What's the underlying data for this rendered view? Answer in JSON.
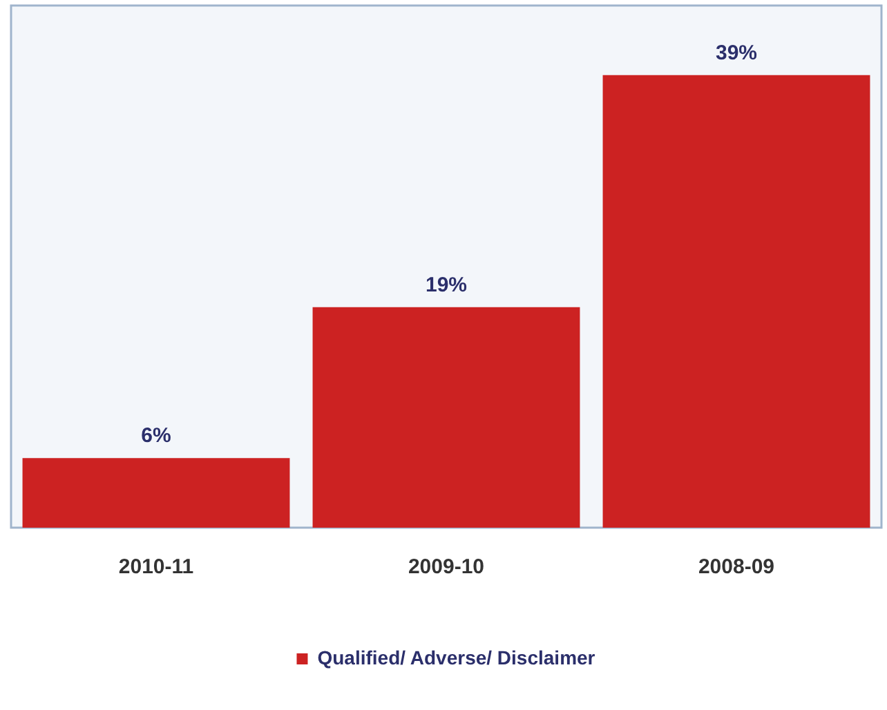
{
  "chart_data": {
    "type": "bar",
    "categories": [
      "2010-11",
      "2009-10",
      "2008-09"
    ],
    "series": [
      {
        "name": "Qualified/ Adverse/ Disclaimer",
        "color": "#cc2222",
        "values": [
          6,
          19,
          39
        ],
        "value_labels": [
          "6%",
          "19%",
          "39%"
        ]
      }
    ],
    "tick_labels": "x",
    "grid": false,
    "legend": "bottom"
  }
}
